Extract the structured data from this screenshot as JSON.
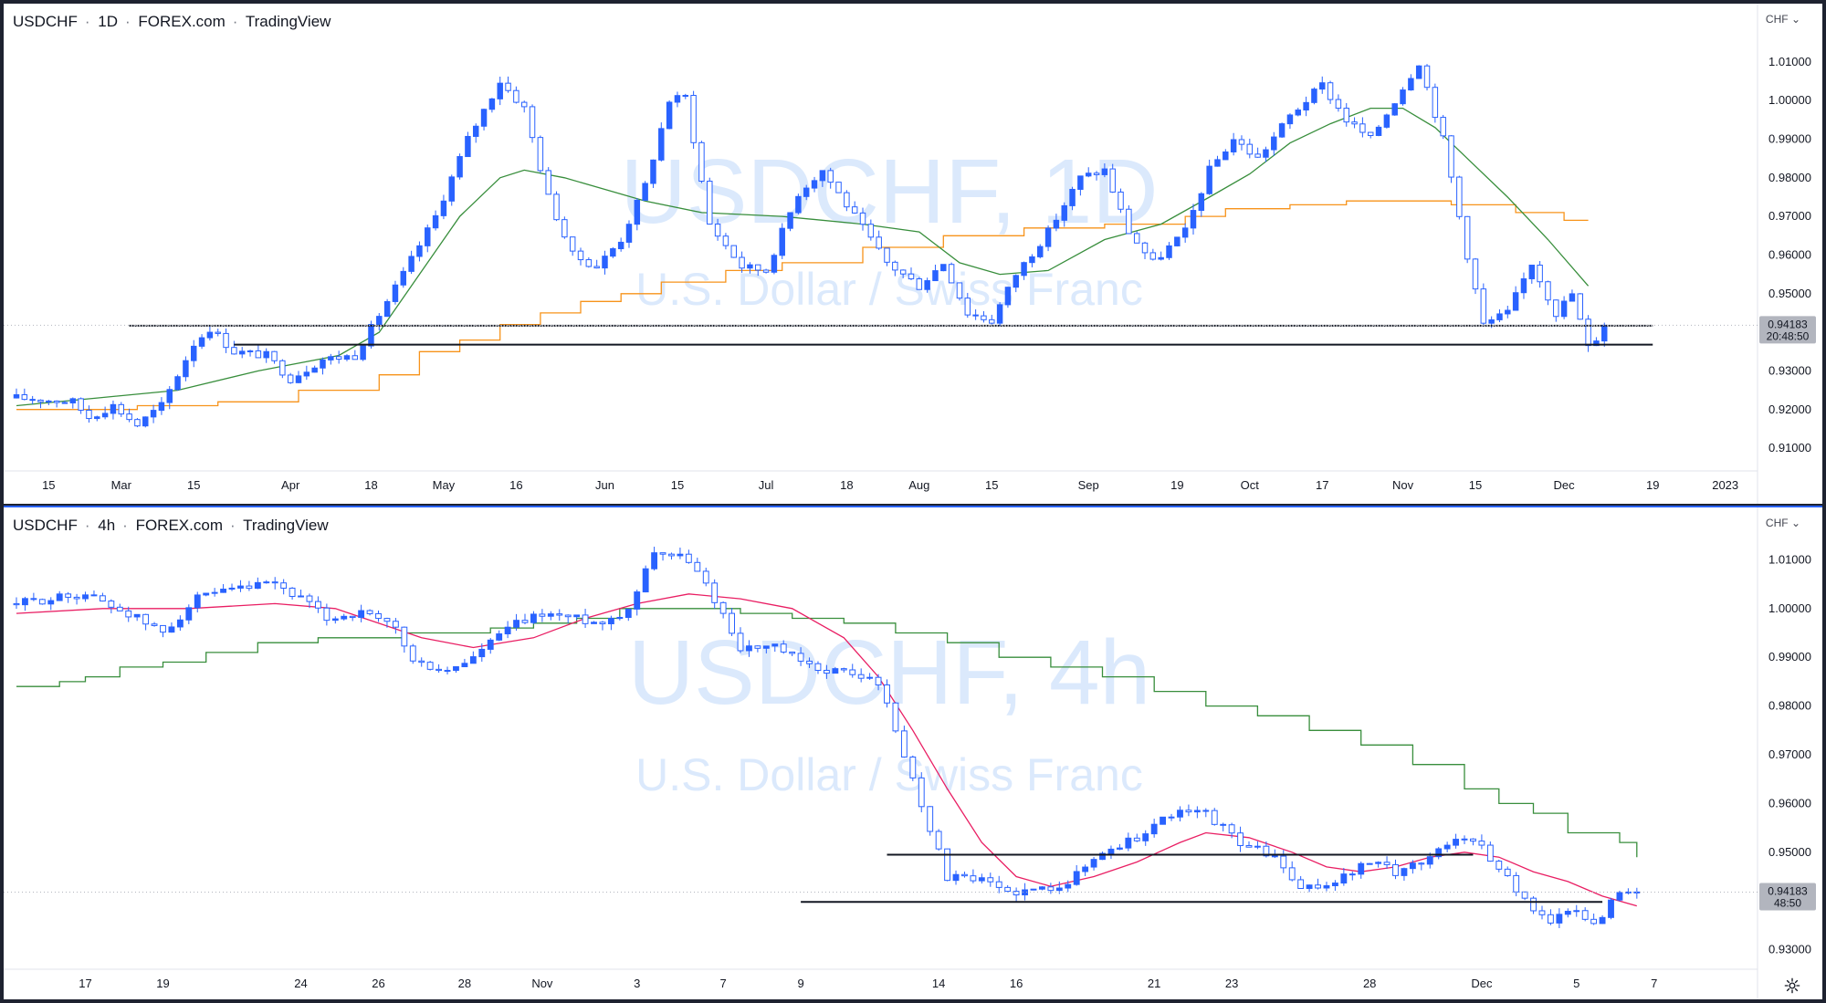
{
  "top_pane": {
    "legend": {
      "symbol": "USDCHF",
      "interval": "1D",
      "exchange": "FOREX.com",
      "brand": "TradingView"
    },
    "currency": "CHF",
    "watermark": {
      "title": "USDCHF, 1D",
      "subtitle": "U.S. Dollar / Swiss Franc"
    },
    "price_label": "0.94183",
    "countdown": "20:48:50",
    "price_axis": [
      "1.01000",
      "1.00000",
      "0.99000",
      "0.98000",
      "0.97000",
      "0.96000",
      "0.95000",
      "0.94000",
      "0.93000",
      "0.92000",
      "0.91000"
    ],
    "time_axis": [
      "15",
      "Mar",
      "15",
      "Apr",
      "18",
      "May",
      "16",
      "Jun",
      "15",
      "Jul",
      "18",
      "Aug",
      "15",
      "Sep",
      "19",
      "Oct",
      "17",
      "Nov",
      "15",
      "Dec",
      "19",
      "2023"
    ]
  },
  "bottom_pane": {
    "legend": {
      "symbol": "USDCHF",
      "interval": "4h",
      "exchange": "FOREX.com",
      "brand": "TradingView"
    },
    "currency": "CHF",
    "watermark": {
      "title": "USDCHF, 4h",
      "subtitle": "U.S. Dollar / Swiss Franc"
    },
    "price_label": "0.94183",
    "countdown": "48:50",
    "price_axis": [
      "1.01000",
      "1.00000",
      "0.99000",
      "0.98000",
      "0.97000",
      "0.96000",
      "0.95000",
      "0.94000",
      "0.93000"
    ],
    "time_axis": [
      "17",
      "19",
      "24",
      "26",
      "28",
      "Nov",
      "3",
      "7",
      "9",
      "14",
      "16",
      "21",
      "23",
      "28",
      "Dec",
      "5",
      "7"
    ]
  },
  "chart_data": [
    {
      "type": "candlestick",
      "symbol": "USDCHF",
      "interval": "1D",
      "ylim": [
        0.906,
        1.018
      ],
      "x_range": [
        0,
        200
      ],
      "x_ticks": [
        {
          "label": "15",
          "x": 4
        },
        {
          "label": "Mar",
          "x": 13
        },
        {
          "label": "15",
          "x": 22
        },
        {
          "label": "Apr",
          "x": 34
        },
        {
          "label": "18",
          "x": 44
        },
        {
          "label": "May",
          "x": 53
        },
        {
          "label": "16",
          "x": 62
        },
        {
          "label": "Jun",
          "x": 73
        },
        {
          "label": "15",
          "x": 82
        },
        {
          "label": "Jul",
          "x": 93
        },
        {
          "label": "18",
          "x": 103
        },
        {
          "label": "Aug",
          "x": 112
        },
        {
          "label": "15",
          "x": 121
        },
        {
          "label": "Sep",
          "x": 133
        },
        {
          "label": "19",
          "x": 144
        },
        {
          "label": "Oct",
          "x": 153
        },
        {
          "label": "17",
          "x": 162
        },
        {
          "label": "Nov",
          "x": 172
        },
        {
          "label": "15",
          "x": 181
        },
        {
          "label": "Dec",
          "x": 192
        },
        {
          "label": "19",
          "x": 203
        },
        {
          "label": "2023",
          "x": 212
        }
      ],
      "anchors": [
        [
          0,
          0.923
        ],
        [
          7,
          0.922
        ],
        [
          9,
          0.918
        ],
        [
          12,
          0.921
        ],
        [
          15,
          0.916
        ],
        [
          18,
          0.921
        ],
        [
          22,
          0.937
        ],
        [
          24,
          0.941
        ],
        [
          27,
          0.935
        ],
        [
          31,
          0.934
        ],
        [
          34,
          0.928
        ],
        [
          38,
          0.933
        ],
        [
          42,
          0.934
        ],
        [
          44,
          0.941
        ],
        [
          48,
          0.955
        ],
        [
          52,
          0.97
        ],
        [
          56,
          0.99
        ],
        [
          60,
          1.005
        ],
        [
          63,
          0.998
        ],
        [
          66,
          0.975
        ],
        [
          69,
          0.96
        ],
        [
          72,
          0.957
        ],
        [
          75,
          0.964
        ],
        [
          78,
          0.978
        ],
        [
          81,
          1.0
        ],
        [
          83,
          1.001
        ],
        [
          86,
          0.968
        ],
        [
          90,
          0.957
        ],
        [
          93,
          0.956
        ],
        [
          97,
          0.976
        ],
        [
          100,
          0.982
        ],
        [
          104,
          0.97
        ],
        [
          108,
          0.958
        ],
        [
          112,
          0.952
        ],
        [
          115,
          0.958
        ],
        [
          118,
          0.945
        ],
        [
          121,
          0.943
        ],
        [
          124,
          0.955
        ],
        [
          128,
          0.966
        ],
        [
          132,
          0.98
        ],
        [
          135,
          0.982
        ],
        [
          138,
          0.966
        ],
        [
          141,
          0.958
        ],
        [
          145,
          0.966
        ],
        [
          148,
          0.982
        ],
        [
          151,
          0.99
        ],
        [
          154,
          0.985
        ],
        [
          158,
          0.996
        ],
        [
          162,
          1.004
        ],
        [
          165,
          0.995
        ],
        [
          168,
          0.99
        ],
        [
          171,
          1.0
        ],
        [
          174,
          1.01
        ],
        [
          177,
          0.99
        ],
        [
          180,
          0.96
        ],
        [
          182,
          0.942
        ],
        [
          185,
          0.945
        ],
        [
          188,
          0.958
        ],
        [
          191,
          0.945
        ],
        [
          193,
          0.95
        ],
        [
          195,
          0.936
        ],
        [
          197,
          0.941
        ]
      ],
      "sma_green": [
        [
          0,
          0.921
        ],
        [
          10,
          0.923
        ],
        [
          20,
          0.925
        ],
        [
          30,
          0.93
        ],
        [
          40,
          0.934
        ],
        [
          45,
          0.94
        ],
        [
          50,
          0.955
        ],
        [
          55,
          0.97
        ],
        [
          60,
          0.98
        ],
        [
          63,
          0.982
        ],
        [
          68,
          0.98
        ],
        [
          73,
          0.977
        ],
        [
          78,
          0.974
        ],
        [
          85,
          0.971
        ],
        [
          95,
          0.97
        ],
        [
          105,
          0.968
        ],
        [
          112,
          0.966
        ],
        [
          117,
          0.958
        ],
        [
          122,
          0.955
        ],
        [
          128,
          0.956
        ],
        [
          135,
          0.964
        ],
        [
          142,
          0.968
        ],
        [
          148,
          0.975
        ],
        [
          153,
          0.981
        ],
        [
          158,
          0.989
        ],
        [
          163,
          0.994
        ],
        [
          168,
          0.998
        ],
        [
          172,
          0.998
        ],
        [
          176,
          0.993
        ],
        [
          180,
          0.985
        ],
        [
          185,
          0.975
        ],
        [
          190,
          0.964
        ],
        [
          195,
          0.952
        ]
      ],
      "sma_orange": [
        [
          0,
          0.92
        ],
        [
          15,
          0.921
        ],
        [
          25,
          0.922
        ],
        [
          35,
          0.925
        ],
        [
          45,
          0.929
        ],
        [
          50,
          0.935
        ],
        [
          55,
          0.938
        ],
        [
          60,
          0.942
        ],
        [
          65,
          0.945
        ],
        [
          70,
          0.948
        ],
        [
          75,
          0.95
        ],
        [
          80,
          0.953
        ],
        [
          88,
          0.956
        ],
        [
          95,
          0.958
        ],
        [
          105,
          0.962
        ],
        [
          115,
          0.965
        ],
        [
          125,
          0.967
        ],
        [
          135,
          0.968
        ],
        [
          145,
          0.97
        ],
        [
          150,
          0.972
        ],
        [
          158,
          0.973
        ],
        [
          165,
          0.974
        ],
        [
          172,
          0.974
        ],
        [
          178,
          0.973
        ],
        [
          186,
          0.971
        ],
        [
          192,
          0.969
        ],
        [
          195,
          0.969
        ]
      ],
      "support_lines": [
        {
          "price": 0.9417,
          "x1": 14,
          "x2": 203,
          "dotted": true
        },
        {
          "price": 0.9368,
          "x1": 27,
          "x2": 203,
          "dotted": false
        }
      ],
      "last_price": 0.94183
    },
    {
      "type": "candlestick",
      "symbol": "USDCHF",
      "interval": "4h",
      "ylim": [
        0.9275,
        1.0155
      ],
      "x_range": [
        0,
        200
      ],
      "x_ticks": [
        {
          "label": "17",
          "x": 8
        },
        {
          "label": "19",
          "x": 17
        },
        {
          "label": "24",
          "x": 33
        },
        {
          "label": "26",
          "x": 42
        },
        {
          "label": "28",
          "x": 52
        },
        {
          "label": "Nov",
          "x": 61
        },
        {
          "label": "3",
          "x": 72
        },
        {
          "label": "7",
          "x": 82
        },
        {
          "label": "9",
          "x": 91
        },
        {
          "label": "14",
          "x": 107
        },
        {
          "label": "16",
          "x": 116
        },
        {
          "label": "21",
          "x": 132
        },
        {
          "label": "23",
          "x": 141
        },
        {
          "label": "28",
          "x": 157
        },
        {
          "label": "Dec",
          "x": 170
        },
        {
          "label": "5",
          "x": 181
        },
        {
          "label": "7",
          "x": 190
        }
      ],
      "anchors": [
        [
          0,
          1.001
        ],
        [
          8,
          1.003
        ],
        [
          13,
          0.999
        ],
        [
          17,
          0.995
        ],
        [
          21,
          1.002
        ],
        [
          26,
          1.004
        ],
        [
          30,
          1.005
        ],
        [
          33,
          1.002
        ],
        [
          36,
          0.998
        ],
        [
          40,
          0.999
        ],
        [
          44,
          0.996
        ],
        [
          46,
          0.989
        ],
        [
          50,
          0.987
        ],
        [
          53,
          0.99
        ],
        [
          57,
          0.996
        ],
        [
          61,
          0.999
        ],
        [
          65,
          0.998
        ],
        [
          68,
          0.997
        ],
        [
          71,
          1.0
        ],
        [
          74,
          1.012
        ],
        [
          78,
          1.01
        ],
        [
          81,
          1.002
        ],
        [
          84,
          0.992
        ],
        [
          88,
          0.992
        ],
        [
          92,
          0.988
        ],
        [
          96,
          0.987
        ],
        [
          100,
          0.985
        ],
        [
          103,
          0.97
        ],
        [
          106,
          0.955
        ],
        [
          108,
          0.945
        ],
        [
          112,
          0.944
        ],
        [
          115,
          0.942
        ],
        [
          118,
          0.942
        ],
        [
          122,
          0.944
        ],
        [
          126,
          0.95
        ],
        [
          130,
          0.953
        ],
        [
          134,
          0.958
        ],
        [
          138,
          0.958
        ],
        [
          142,
          0.952
        ],
        [
          146,
          0.949
        ],
        [
          149,
          0.942
        ],
        [
          153,
          0.944
        ],
        [
          157,
          0.948
        ],
        [
          160,
          0.946
        ],
        [
          163,
          0.948
        ],
        [
          166,
          0.952
        ],
        [
          169,
          0.953
        ],
        [
          172,
          0.947
        ],
        [
          175,
          0.94
        ],
        [
          178,
          0.936
        ],
        [
          181,
          0.938
        ],
        [
          183,
          0.935
        ],
        [
          186,
          0.942
        ],
        [
          188,
          0.943
        ]
      ],
      "sma_red": [
        [
          0,
          0.999
        ],
        [
          10,
          1.0
        ],
        [
          20,
          1.0
        ],
        [
          30,
          1.001
        ],
        [
          37,
          1.0
        ],
        [
          42,
          0.997
        ],
        [
          47,
          0.994
        ],
        [
          53,
          0.992
        ],
        [
          60,
          0.994
        ],
        [
          66,
          0.998
        ],
        [
          72,
          1.001
        ],
        [
          78,
          1.003
        ],
        [
          84,
          1.002
        ],
        [
          90,
          1.0
        ],
        [
          96,
          0.994
        ],
        [
          100,
          0.986
        ],
        [
          104,
          0.975
        ],
        [
          108,
          0.963
        ],
        [
          112,
          0.952
        ],
        [
          116,
          0.945
        ],
        [
          120,
          0.943
        ],
        [
          125,
          0.945
        ],
        [
          130,
          0.948
        ],
        [
          135,
          0.952
        ],
        [
          138,
          0.954
        ],
        [
          143,
          0.953
        ],
        [
          148,
          0.95
        ],
        [
          152,
          0.947
        ],
        [
          156,
          0.946
        ],
        [
          160,
          0.947
        ],
        [
          164,
          0.949
        ],
        [
          168,
          0.95
        ],
        [
          172,
          0.949
        ],
        [
          176,
          0.946
        ],
        [
          180,
          0.944
        ],
        [
          184,
          0.941
        ],
        [
          188,
          0.939
        ]
      ],
      "sma_green_step": [
        [
          0,
          0.984
        ],
        [
          5,
          0.985
        ],
        [
          8,
          0.986
        ],
        [
          12,
          0.988
        ],
        [
          17,
          0.989
        ],
        [
          22,
          0.991
        ],
        [
          28,
          0.993
        ],
        [
          35,
          0.994
        ],
        [
          45,
          0.995
        ],
        [
          55,
          0.996
        ],
        [
          60,
          0.997
        ],
        [
          65,
          0.998
        ],
        [
          70,
          1.0
        ],
        [
          78,
          1.0
        ],
        [
          84,
          0.999
        ],
        [
          90,
          0.998
        ],
        [
          96,
          0.997
        ],
        [
          102,
          0.995
        ],
        [
          108,
          0.993
        ],
        [
          114,
          0.99
        ],
        [
          120,
          0.988
        ],
        [
          126,
          0.986
        ],
        [
          132,
          0.983
        ],
        [
          138,
          0.98
        ],
        [
          144,
          0.978
        ],
        [
          150,
          0.975
        ],
        [
          156,
          0.972
        ],
        [
          162,
          0.968
        ],
        [
          168,
          0.963
        ],
        [
          172,
          0.96
        ],
        [
          176,
          0.958
        ],
        [
          180,
          0.954
        ],
        [
          186,
          0.952
        ],
        [
          188,
          0.949
        ]
      ],
      "support_lines": [
        {
          "price": 0.9495,
          "x1": 101,
          "x2": 169,
          "dotted": false
        },
        {
          "price": 0.9398,
          "x1": 91,
          "x2": 184,
          "dotted": false
        }
      ],
      "last_price": 0.94183
    }
  ],
  "colors": {
    "up_candle": "#2962ff",
    "down_candle": "#ffffff",
    "candle_border": "#2962ff",
    "sma_green": "#388e3c",
    "sma_orange": "#f7931a",
    "sma_red": "#e91e63",
    "price_badge": "#b2b5be",
    "active_border": "#2962ff"
  },
  "icons": [
    "chevron-down-icon",
    "gear-icon"
  ]
}
